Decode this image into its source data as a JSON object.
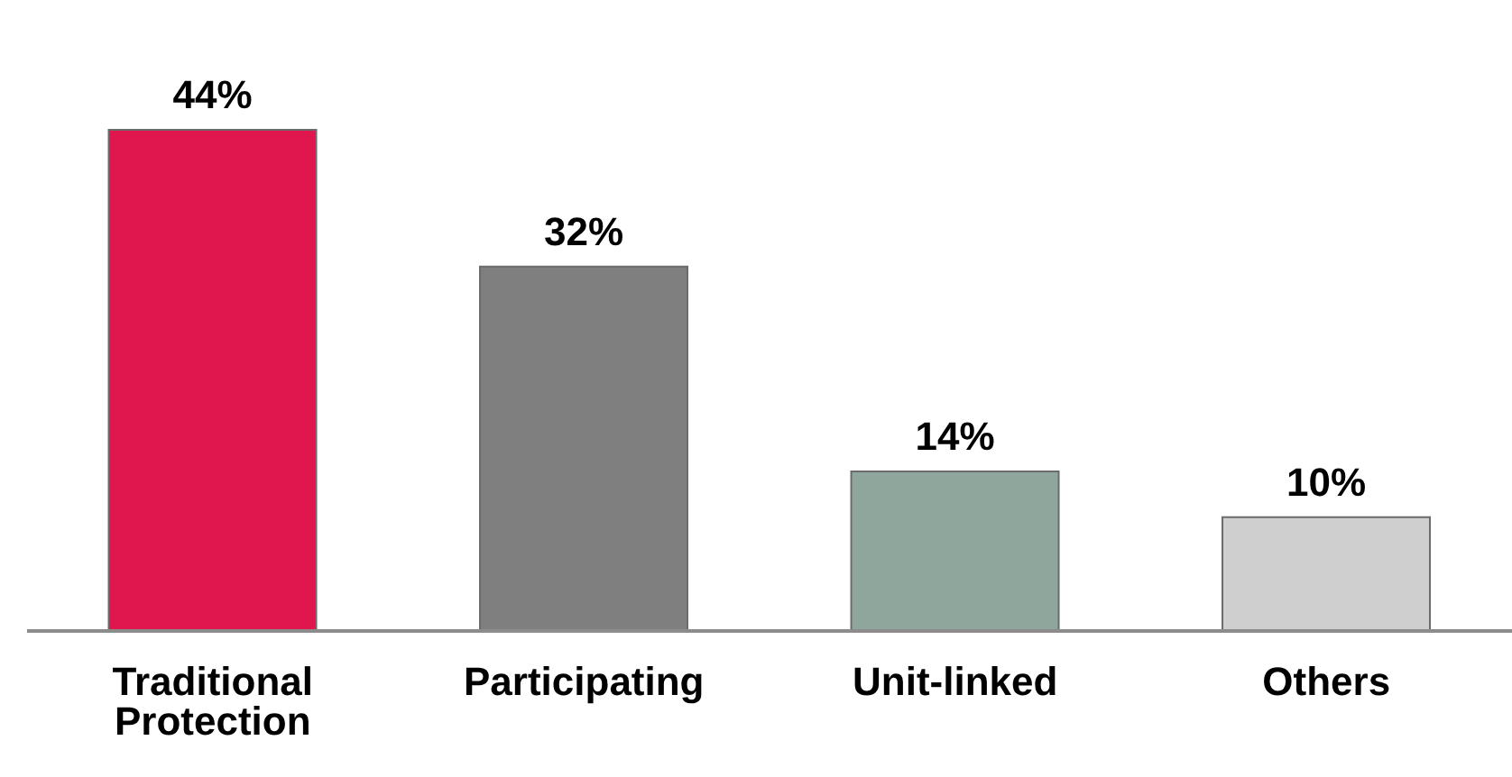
{
  "chart_data": {
    "type": "bar",
    "categories": [
      "Traditional Protection",
      "Participating",
      "Unit-linked",
      "Others"
    ],
    "values": [
      44,
      32,
      14,
      10
    ],
    "colors": [
      "#e0174f",
      "#7f7f7f",
      "#8fa69c",
      "#cfcfcf"
    ],
    "value_labels": [
      "44%",
      "32%",
      "14%",
      "10%"
    ]
  }
}
